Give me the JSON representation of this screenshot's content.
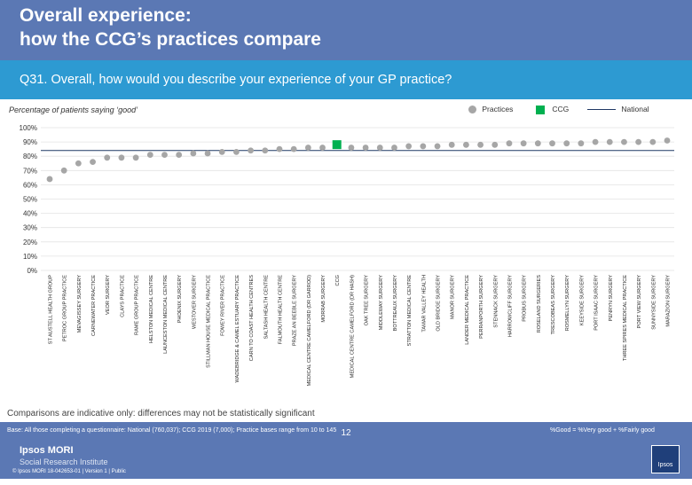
{
  "header": {
    "title": "Overall experience:\nhow the CCG’s practices compare",
    "question": "Q31. Overall, how would you describe your experience of your GP practice?"
  },
  "colors": {
    "header": "#5b78b4",
    "question_bar": "#2d9ad2",
    "practice": "#a6a6a6",
    "ccg": "#00b050",
    "national": "#1f3864"
  },
  "chart_data": {
    "type": "scatter",
    "title": "Percentage of patients saying ‘good’",
    "ylabel": "Percentage of patients saying ‘good’",
    "ylim": [
      0,
      100
    ],
    "yticks": [
      "0%",
      "10%",
      "20%",
      "30%",
      "40%",
      "50%",
      "60%",
      "70%",
      "80%",
      "90%",
      "100%"
    ],
    "legend": [
      "Practices",
      "CCG",
      "National"
    ],
    "national_value": 84,
    "ccg_index": 20,
    "categories": [
      "ST AUSTELL HEALTH GROUP",
      "PETROC GROUP PRACTICE",
      "MEVAGISSEY SURGERY",
      "CARNEWATER PRACTICE",
      "VEOR SURGERY",
      "CLAYS PRACTICE",
      "RAME GROUP PRACTICE",
      "HELSTON MEDICAL CENTRE",
      "LAUNCESTON MEDICAL CENTRE",
      "PHOENIX SURGERY",
      "WESTOVER SURGERY",
      "STILLMAN HOUSE MEDICAL PRACTICE",
      "FOWEY RIVER PRACTICE",
      "WADEBRIDGE & CAMEL ESTUARY PRACTICE",
      "CARN TO COAST HEALTH CENTRES",
      "SALTASH HEALTH CENTRE",
      "FALMOUTH HEALTH CENTRE",
      "PRAZE AN BEEBLE SURGERY",
      "MEDICAL CENTRE CAMELFORD (DR GARROD)",
      "MORRAB SURGERY",
      "CCG",
      "MEDICAL CENTRE CAMELFORD (DR HASH)",
      "OAK TREE SURGERY",
      "MIDDLEWAY SURGERY",
      "BOTTREAUX SURGERY",
      "STRATTON MEDICAL CENTRE",
      "TAMAR VALLEY HEALTH",
      "OLD BRIDGE SURGERY",
      "MANOR SURGERY",
      "LANDER MEDICAL PRACTICE",
      "PERRANPORTH SURGERY",
      "STENNACK SURGERY",
      "HARROWCLIFF SURGERY",
      "PROBUS SURGERY",
      "ROSELAND SURGERIES",
      "TRESCOBEAS SURGERY",
      "ROSMELLYN SURGERY",
      "KEEYSIDE SURGERY",
      "PORT ISAAC SURGERY",
      "PENRYN SURGERY",
      "THREE SPIRES MEDICAL PRACTICE",
      "PORT VIEW SURGERY",
      "SUNNYSIDE SURGERY",
      "MARAZION SURGERY"
    ],
    "values": [
      64,
      70,
      75,
      76,
      79,
      79,
      79,
      81,
      81,
      81,
      82,
      82,
      83,
      83,
      84,
      84,
      85,
      85,
      86,
      86,
      85,
      86,
      86,
      86,
      86,
      87,
      87,
      87,
      88,
      88,
      88,
      88,
      89,
      89,
      89,
      89,
      89,
      89,
      90,
      90,
      90,
      90,
      90,
      91
    ]
  },
  "note": "Comparisons are indicative only: differences may not be statistically significant",
  "footer": {
    "base": "Base: All those completing a questionnaire: National (760,037); CCG 2019 (7,000); Practice bases range from 10 to 145",
    "formula": "%Good = %Very good + %Fairly good",
    "page": "12",
    "brand": "Ipsos MORI",
    "brand_sub": "Social Research Institute",
    "copyright": "© Ipsos MORI    18-042653-01 | Version 1 | Public",
    "logo_text": "Ipsos"
  }
}
